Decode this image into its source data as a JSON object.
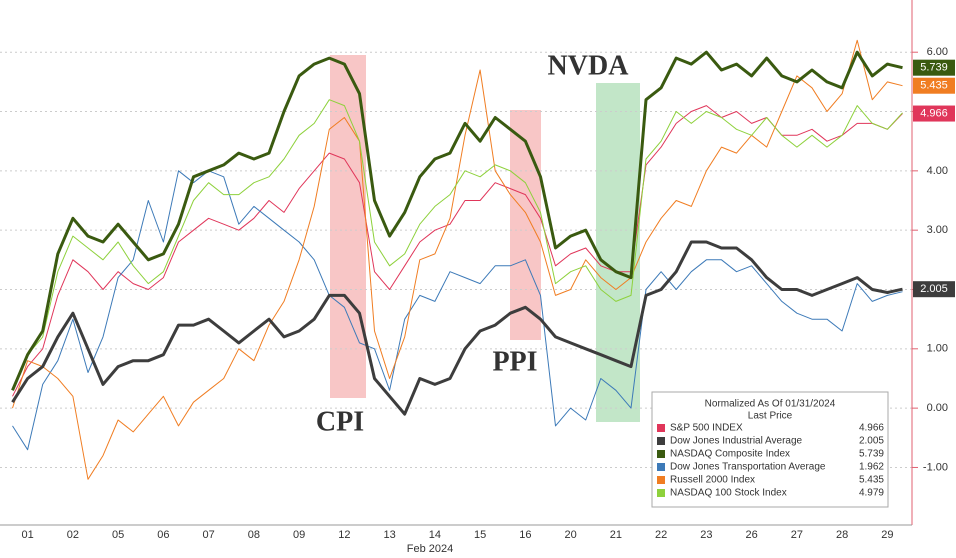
{
  "chart_data": {
    "type": "line",
    "x_label": "Feb 2024",
    "categories": [
      null,
      "01",
      null,
      null,
      "02",
      null,
      null,
      "05",
      null,
      null,
      "06",
      null,
      null,
      "07",
      null,
      null,
      "08",
      null,
      null,
      "09",
      null,
      null,
      "12",
      null,
      null,
      "13",
      null,
      null,
      "14",
      null,
      null,
      "15",
      null,
      null,
      "16",
      null,
      null,
      "20",
      null,
      null,
      "21",
      null,
      null,
      "22",
      null,
      null,
      "23",
      null,
      null,
      "26",
      null,
      null,
      "27",
      null,
      null,
      "28",
      null,
      null,
      "29",
      null
    ],
    "ylim": [
      -1.97,
      6.88
    ],
    "yticks": [
      {
        "value": -1,
        "label": "-1.00"
      },
      {
        "value": 0,
        "label": "0.00"
      },
      {
        "value": 1,
        "label": "1.00"
      },
      {
        "value": 2,
        "label": "2.00"
      },
      {
        "value": 3,
        "label": "3.00"
      },
      {
        "value": 4,
        "label": "4.00"
      },
      {
        "value": 5,
        "label": "5.00"
      },
      {
        "value": 6,
        "label": "6.00"
      }
    ],
    "grid": true,
    "annotations": [
      {
        "text": "CPI",
        "color": "#c0303a"
      },
      {
        "text": "PPI",
        "color": "#c0303a"
      },
      {
        "text": "NVDA",
        "color": "#5c8a2a"
      }
    ],
    "legend_title": "Normalized As Of 01/31/2024",
    "legend_subtitle": "Last Price",
    "series": [
      {
        "name": "S&P 500 INDEX",
        "color": "#e0365a",
        "linewidth": 1,
        "last_price": 4.966,
        "axis_tag": true,
        "values": [
          0.2,
          0.7,
          1.0,
          1.9,
          2.5,
          2.3,
          2.0,
          2.3,
          2.1,
          2.0,
          2.2,
          2.8,
          3.0,
          3.2,
          3.1,
          3.0,
          3.2,
          3.5,
          3.3,
          3.7,
          4.0,
          4.3,
          4.2,
          3.8,
          2.3,
          2.0,
          2.4,
          2.8,
          3.0,
          3.1,
          3.5,
          3.5,
          3.8,
          3.7,
          3.6,
          3.2,
          2.4,
          2.6,
          2.7,
          2.4,
          2.3,
          2.3,
          4.1,
          4.4,
          4.8,
          5.0,
          5.1,
          4.9,
          5.0,
          4.8,
          4.9,
          4.6,
          4.6,
          4.7,
          4.5,
          4.6,
          4.8,
          4.8,
          4.7,
          4.966
        ]
      },
      {
        "name": "Dow Jones Industrial Average",
        "color": "#3d3d3d",
        "linewidth": 3,
        "last_price": 2.005,
        "axis_tag": true,
        "values": [
          0.1,
          0.5,
          0.7,
          1.2,
          1.6,
          1.0,
          0.4,
          0.7,
          0.8,
          0.8,
          0.9,
          1.4,
          1.4,
          1.5,
          1.3,
          1.1,
          1.3,
          1.5,
          1.2,
          1.3,
          1.5,
          1.9,
          1.9,
          1.6,
          0.5,
          0.2,
          -0.1,
          0.5,
          0.4,
          0.5,
          1.0,
          1.3,
          1.4,
          1.6,
          1.7,
          1.5,
          1.2,
          1.1,
          1.0,
          0.9,
          0.8,
          0.7,
          1.9,
          2.0,
          2.3,
          2.8,
          2.8,
          2.7,
          2.7,
          2.5,
          2.2,
          2.0,
          2.0,
          1.9,
          2.0,
          2.1,
          2.2,
          2.0,
          1.95,
          2.005
        ]
      },
      {
        "name": "NASDAQ Composite Index",
        "color": "#3a5a10",
        "linewidth": 3,
        "last_price": 5.739,
        "axis_tag": true,
        "values": [
          0.3,
          0.9,
          1.3,
          2.6,
          3.2,
          2.9,
          2.8,
          3.1,
          2.8,
          2.5,
          2.6,
          3.1,
          3.9,
          4.0,
          4.1,
          4.3,
          4.2,
          4.3,
          5.0,
          5.6,
          5.8,
          5.9,
          5.8,
          5.3,
          3.5,
          2.9,
          3.3,
          3.9,
          4.2,
          4.3,
          4.8,
          4.5,
          4.9,
          4.7,
          4.5,
          3.9,
          2.7,
          2.9,
          3.0,
          2.5,
          2.3,
          2.2,
          5.2,
          5.4,
          5.9,
          5.8,
          6.0,
          5.7,
          5.8,
          5.6,
          5.9,
          5.6,
          5.5,
          5.7,
          5.5,
          5.4,
          6.0,
          5.6,
          5.8,
          5.739
        ]
      },
      {
        "name": "Dow Jones Transportation Average",
        "color": "#3d7ab8",
        "linewidth": 1,
        "last_price": 1.962,
        "axis_tag": false,
        "values": [
          -0.3,
          -0.7,
          0.4,
          0.8,
          1.5,
          0.6,
          1.2,
          2.2,
          2.5,
          3.5,
          2.8,
          4.0,
          3.8,
          4.0,
          3.9,
          3.1,
          3.4,
          3.2,
          3.0,
          2.8,
          2.5,
          1.9,
          1.7,
          1.1,
          1.0,
          0.3,
          1.5,
          1.9,
          1.8,
          2.3,
          2.2,
          2.1,
          2.4,
          2.4,
          2.5,
          1.9,
          -0.3,
          0.0,
          -0.2,
          0.5,
          0.3,
          0.0,
          2.0,
          2.3,
          2.0,
          2.3,
          2.5,
          2.5,
          2.3,
          2.4,
          2.1,
          1.8,
          1.6,
          1.5,
          1.5,
          1.3,
          2.1,
          1.8,
          1.9,
          1.962
        ]
      },
      {
        "name": "Russell 2000 Index",
        "color": "#f07d22",
        "linewidth": 1,
        "last_price": 5.435,
        "axis_tag": true,
        "values": [
          0.0,
          0.8,
          0.7,
          0.5,
          0.2,
          -1.2,
          -0.8,
          -0.2,
          -0.4,
          -0.1,
          0.2,
          -0.3,
          0.1,
          0.3,
          0.5,
          1.0,
          0.8,
          1.4,
          1.8,
          2.5,
          3.4,
          4.7,
          4.9,
          4.5,
          1.3,
          0.5,
          1.2,
          2.5,
          2.6,
          3.2,
          4.6,
          5.7,
          4.0,
          3.6,
          3.3,
          2.8,
          1.9,
          2.0,
          2.5,
          2.2,
          2.0,
          2.2,
          2.8,
          3.2,
          3.5,
          3.4,
          4.0,
          4.4,
          4.3,
          4.6,
          4.4,
          5.0,
          5.6,
          5.4,
          5.0,
          5.3,
          6.2,
          5.2,
          5.5,
          5.435
        ]
      },
      {
        "name": "NASDAQ 100 Stock Index",
        "color": "#8ed13c",
        "linewidth": 1,
        "last_price": 4.979,
        "axis_tag": false,
        "values": [
          0.3,
          0.9,
          1.2,
          2.3,
          2.9,
          2.7,
          2.5,
          2.8,
          2.4,
          2.1,
          2.3,
          2.9,
          3.5,
          3.8,
          3.6,
          3.6,
          3.8,
          3.9,
          4.2,
          4.6,
          4.8,
          5.2,
          5.1,
          4.5,
          2.8,
          2.4,
          2.6,
          3.1,
          3.4,
          3.6,
          4.0,
          3.9,
          4.1,
          4.0,
          3.8,
          3.3,
          2.1,
          2.3,
          2.4,
          2.0,
          1.8,
          1.9,
          4.2,
          4.5,
          5.0,
          4.8,
          5.0,
          4.9,
          4.7,
          4.6,
          4.9,
          4.6,
          4.4,
          4.6,
          4.4,
          4.6,
          5.1,
          4.8,
          4.7,
          4.979
        ]
      }
    ]
  }
}
